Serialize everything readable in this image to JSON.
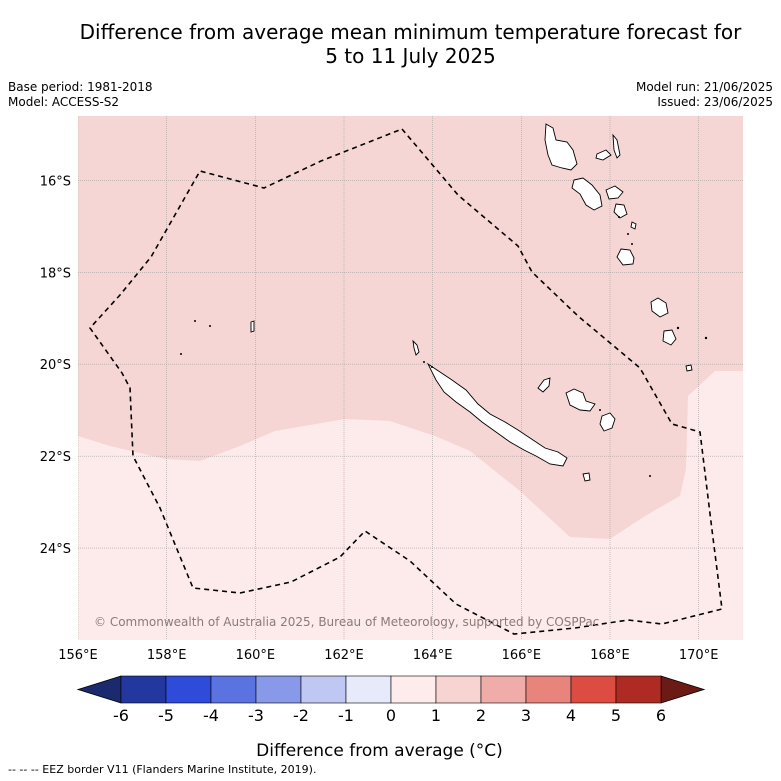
{
  "title": {
    "line1": "Difference from average mean minimum temperature forecast for",
    "line2": "5 to 11 July 2025"
  },
  "meta_left": {
    "base_period": "Base period: 1981-2018",
    "model": "Model: ACCESS-S2"
  },
  "meta_right": {
    "model_run": "Model run: 21/06/2025",
    "issued": "Issued: 23/06/2025"
  },
  "map": {
    "extent": {
      "lon_min": 156.0,
      "lon_max": 171.0,
      "lat_min": -26.0,
      "lat_max": -14.6
    },
    "lat_ticks": [
      {
        "value": -16,
        "label": "16°S"
      },
      {
        "value": -18,
        "label": "18°S"
      },
      {
        "value": -20,
        "label": "20°S"
      },
      {
        "value": -22,
        "label": "22°S"
      },
      {
        "value": -24,
        "label": "24°S"
      }
    ],
    "lon_ticks": [
      {
        "value": 156,
        "label": "156°E"
      },
      {
        "value": 158,
        "label": "158°E"
      },
      {
        "value": 160,
        "label": "160°E"
      },
      {
        "value": 162,
        "label": "162°E"
      },
      {
        "value": 164,
        "label": "164°E"
      },
      {
        "value": 166,
        "label": "166°E"
      },
      {
        "value": 168,
        "label": "168°E"
      },
      {
        "value": 170,
        "label": "170°E"
      }
    ],
    "gridlines": true,
    "fill_regions": [
      {
        "range": "1 to 2",
        "color": "#f5d6d4"
      },
      {
        "range": "0 to 1",
        "color": "#fcebea"
      }
    ],
    "copyright": "© Commonwealth of Australia 2025, Bureau of Meteorology, supported by COSPPac"
  },
  "colorbar": {
    "ticks": [
      "-6",
      "-5",
      "-4",
      "-3",
      "-2",
      "-1",
      "0",
      "1",
      "2",
      "3",
      "4",
      "5",
      "6"
    ],
    "colors": [
      "#22389e",
      "#2f4bd9",
      "#5a73e0",
      "#8799e8",
      "#bfc7f3",
      "#e6eafa",
      "#fdeceb",
      "#f7d4d1",
      "#efaca8",
      "#e8847c",
      "#dc4c40",
      "#ad2b23"
    ],
    "low_extend_color": "#1b2a6e",
    "high_extend_color": "#6b1a16",
    "label": "Difference from average (°C)"
  },
  "footnote": "-- -- -- EEZ border V11 (Flanders Marine Institute, 2019)."
}
